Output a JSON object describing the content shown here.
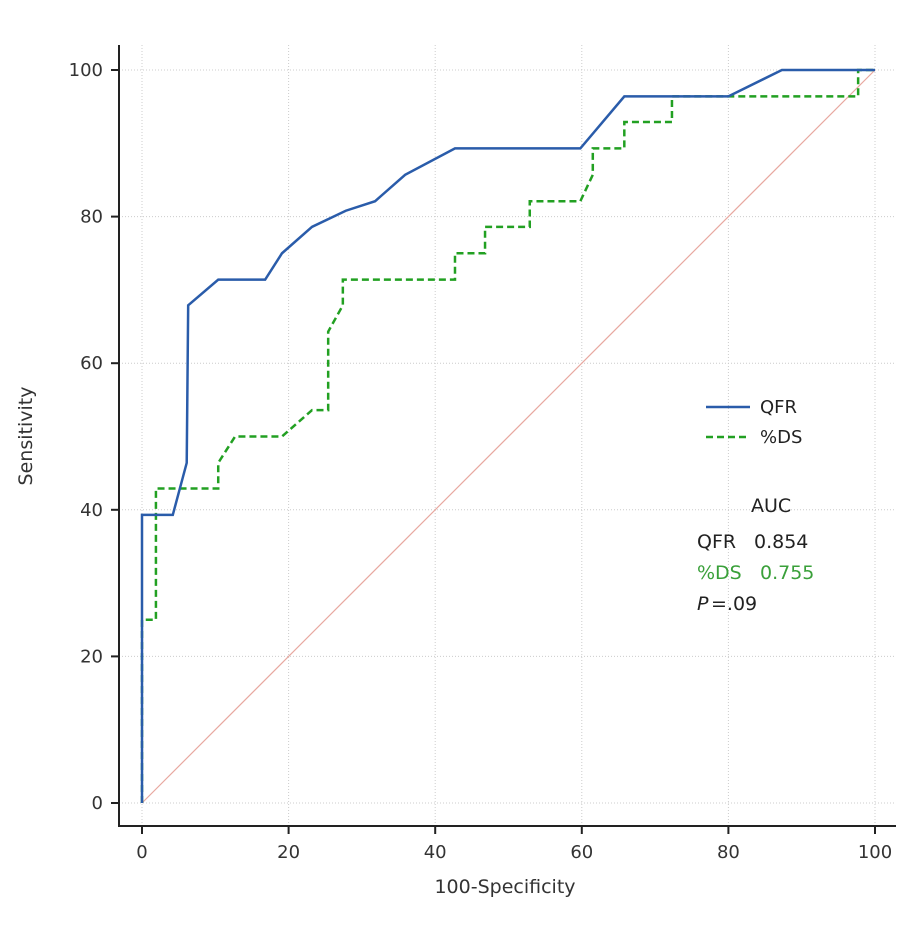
{
  "chart_data": {
    "type": "line",
    "title": "",
    "xlabel": "100-Specificity",
    "ylabel": "Sensitivity",
    "xlim": [
      0,
      100
    ],
    "ylim": [
      0,
      100
    ],
    "xticks": [
      0,
      20,
      40,
      60,
      80,
      100
    ],
    "yticks": [
      0,
      20,
      40,
      60,
      80,
      100
    ],
    "grid": true,
    "legend_position": "right-middle",
    "series": [
      {
        "name": "QFR",
        "color": "#2a5caa",
        "style": "solid",
        "x": [
          0,
          0,
          4.2,
          6.1,
          6.3,
          10.4,
          16.8,
          19.1,
          23.2,
          27.8,
          31.8,
          35.9,
          42.7,
          59.8,
          65.8,
          80,
          87.3,
          100
        ],
        "y": [
          0,
          39.3,
          39.3,
          46.4,
          67.9,
          71.4,
          71.4,
          75,
          78.6,
          80.8,
          82.1,
          85.7,
          89.3,
          89.3,
          96.4,
          96.4,
          100,
          100
        ]
      },
      {
        "name": "%DS",
        "color": "#22a022",
        "style": "dashed",
        "x": [
          0,
          0,
          1.9,
          1.9,
          10.4,
          10.4,
          12.7,
          19.1,
          23.2,
          25.4,
          25.4,
          27.4,
          27.4,
          42.7,
          42.7,
          46.8,
          46.8,
          52.9,
          52.9,
          59.8,
          61.5,
          61.5,
          65.8,
          65.8,
          72.3,
          72.3,
          97.7,
          97.7,
          100
        ],
        "y": [
          0,
          25,
          25,
          42.9,
          42.9,
          46.4,
          50,
          50,
          53.6,
          53.6,
          64.3,
          67.9,
          71.4,
          71.4,
          75,
          75,
          78.6,
          78.6,
          82.1,
          82.1,
          85.7,
          89.3,
          89.3,
          92.9,
          92.9,
          96.4,
          96.4,
          100,
          100
        ]
      },
      {
        "color": "#e8a8a0",
        "style": "solid",
        "x": [
          0,
          100
        ],
        "y": [
          0,
          100
        ]
      }
    ],
    "annotations": {
      "auc_header": "AUC",
      "qfr_label": "QFR",
      "qfr_auc": "0.854",
      "ds_label": "%DS",
      "ds_auc": "0.755",
      "p_label": "P",
      "p_value": "=.09"
    }
  }
}
